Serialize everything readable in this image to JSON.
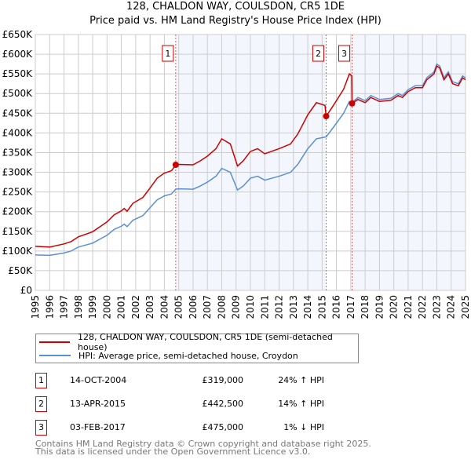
{
  "title": "128, CHALDON WAY, COULSDON, CR5 1DE",
  "subtitle": "Price paid vs. HM Land Registry's House Price Index (HPI)",
  "chart_data": {
    "type": "line",
    "ylim": [
      0,
      650000
    ],
    "xlim": [
      1995,
      2025
    ],
    "yticks": [
      0,
      50000,
      100000,
      150000,
      200000,
      250000,
      300000,
      350000,
      400000,
      450000,
      500000,
      550000,
      600000,
      650000
    ],
    "ytick_labels": [
      "£0",
      "£50K",
      "£100K",
      "£150K",
      "£200K",
      "£250K",
      "£300K",
      "£350K",
      "£400K",
      "£450K",
      "£500K",
      "£550K",
      "£600K",
      "£650K"
    ],
    "xtick_labels": [
      "1995",
      "1996",
      "1997",
      "1998",
      "1999",
      "2000",
      "2001",
      "2002",
      "2003",
      "2004",
      "2005",
      "2006",
      "2007",
      "2008",
      "2009",
      "2010",
      "2011",
      "2012",
      "2013",
      "2014",
      "2015",
      "2016",
      "2017",
      "2018",
      "2019",
      "2020",
      "2021",
      "2022",
      "2023",
      "2024",
      "2025"
    ],
    "grid": true,
    "series": [
      {
        "name": "128, CHALDON WAY, COULSDON, CR5 1DE (semi-detached house)",
        "color": "#cc0000",
        "x": [
          1995,
          1996,
          1997,
          1997.5,
          1998,
          1999,
          2000,
          2000.5,
          2001,
          2001.2,
          2001.4,
          2001.8,
          2002.5,
          2003,
          2003.5,
          2004,
          2004.5,
          2004.79,
          2005,
          2006,
          2006.5,
          2007,
          2007.6,
          2008,
          2008.6,
          2009.1,
          2009.5,
          2010,
          2010.5,
          2011,
          2012,
          2012.8,
          2013.3,
          2014,
          2014.6,
          2015.2,
          2015.28,
          2015.7,
          2016.5,
          2016.9,
          2017.07,
          2017.09,
          2017.5,
          2018,
          2018.4,
          2019,
          2019.8,
          2020.3,
          2020.6,
          2021,
          2021.5,
          2022,
          2022.3,
          2022.8,
          2023,
          2023.2,
          2023.5,
          2023.8,
          2024.1,
          2024.5,
          2024.8,
          2025
        ],
        "y": [
          112,
          110,
          118,
          124,
          136,
          149,
          174,
          192,
          202,
          208,
          201,
          221,
          236,
          260,
          285,
          298,
          304,
          319,
          320,
          319,
          329,
          341,
          360,
          385,
          372,
          316,
          329,
          353,
          360,
          347,
          360,
          372,
          397,
          446,
          477,
          470,
          442.5,
          465,
          511,
          550,
          545,
          475,
          485,
          477,
          490,
          480,
          483,
          495,
          490,
          505,
          515,
          515,
          535,
          550,
          570,
          565,
          535,
          550,
          525,
          520,
          540,
          535
        ]
      },
      {
        "name": "HPI: Average price, semi-detached house, Croydon",
        "color": "#5b8fd4",
        "x": [
          1995,
          1996,
          1997,
          1997.5,
          1998,
          1999,
          2000,
          2000.5,
          2001,
          2001.2,
          2001.4,
          2001.8,
          2002.5,
          2003,
          2003.5,
          2004,
          2004.5,
          2004.79,
          2005,
          2006,
          2006.5,
          2007,
          2007.6,
          2008,
          2008.6,
          2009.1,
          2009.5,
          2010,
          2010.5,
          2011,
          2012,
          2012.8,
          2013.3,
          2014,
          2014.6,
          2015.28,
          2015.7,
          2016.5,
          2016.9,
          2017.09,
          2017.5,
          2018,
          2018.4,
          2019,
          2019.8,
          2020.3,
          2020.6,
          2021,
          2021.5,
          2022,
          2022.3,
          2022.8,
          2023,
          2023.2,
          2023.5,
          2023.8,
          2024.1,
          2024.5,
          2024.8,
          2025
        ],
        "y": [
          90,
          89,
          95,
          100,
          110,
          120,
          140,
          155,
          163,
          168,
          162,
          178,
          190,
          210,
          230,
          240,
          245,
          257,
          258,
          257,
          265,
          275,
          290,
          310,
          300,
          255,
          265,
          285,
          290,
          280,
          290,
          300,
          320,
          360,
          385,
          390,
          410,
          450,
          480,
          478,
          490,
          482,
          495,
          485,
          488,
          500,
          495,
          510,
          520,
          520,
          540,
          555,
          575,
          570,
          540,
          555,
          530,
          525,
          545,
          540
        ]
      }
    ],
    "y_units": "thousands GBP",
    "sales": [
      {
        "label": "1",
        "x": 2004.79,
        "y": 319
      },
      {
        "label": "2",
        "x": 2015.28,
        "y": 442.5
      },
      {
        "label": "3",
        "x": 2017.09,
        "y": 475
      }
    ]
  },
  "legend": {
    "property": "128, CHALDON WAY, COULSDON, CR5 1DE (semi-detached house)",
    "hpi": "HPI: Average price, semi-detached house, Croydon"
  },
  "transactions": [
    {
      "num": "1",
      "date": "14-OCT-2004",
      "price": "£319,000",
      "hpi": "24% ↑ HPI"
    },
    {
      "num": "2",
      "date": "13-APR-2015",
      "price": "£442,500",
      "hpi": "14% ↑ HPI"
    },
    {
      "num": "3",
      "date": "03-FEB-2017",
      "price": "£475,000",
      "hpi": "1% ↓ HPI"
    }
  ],
  "footer": {
    "line1": "Contains HM Land Registry data © Crown copyright and database right 2025.",
    "line2": "This data is licensed under the Open Government Licence v3.0."
  }
}
